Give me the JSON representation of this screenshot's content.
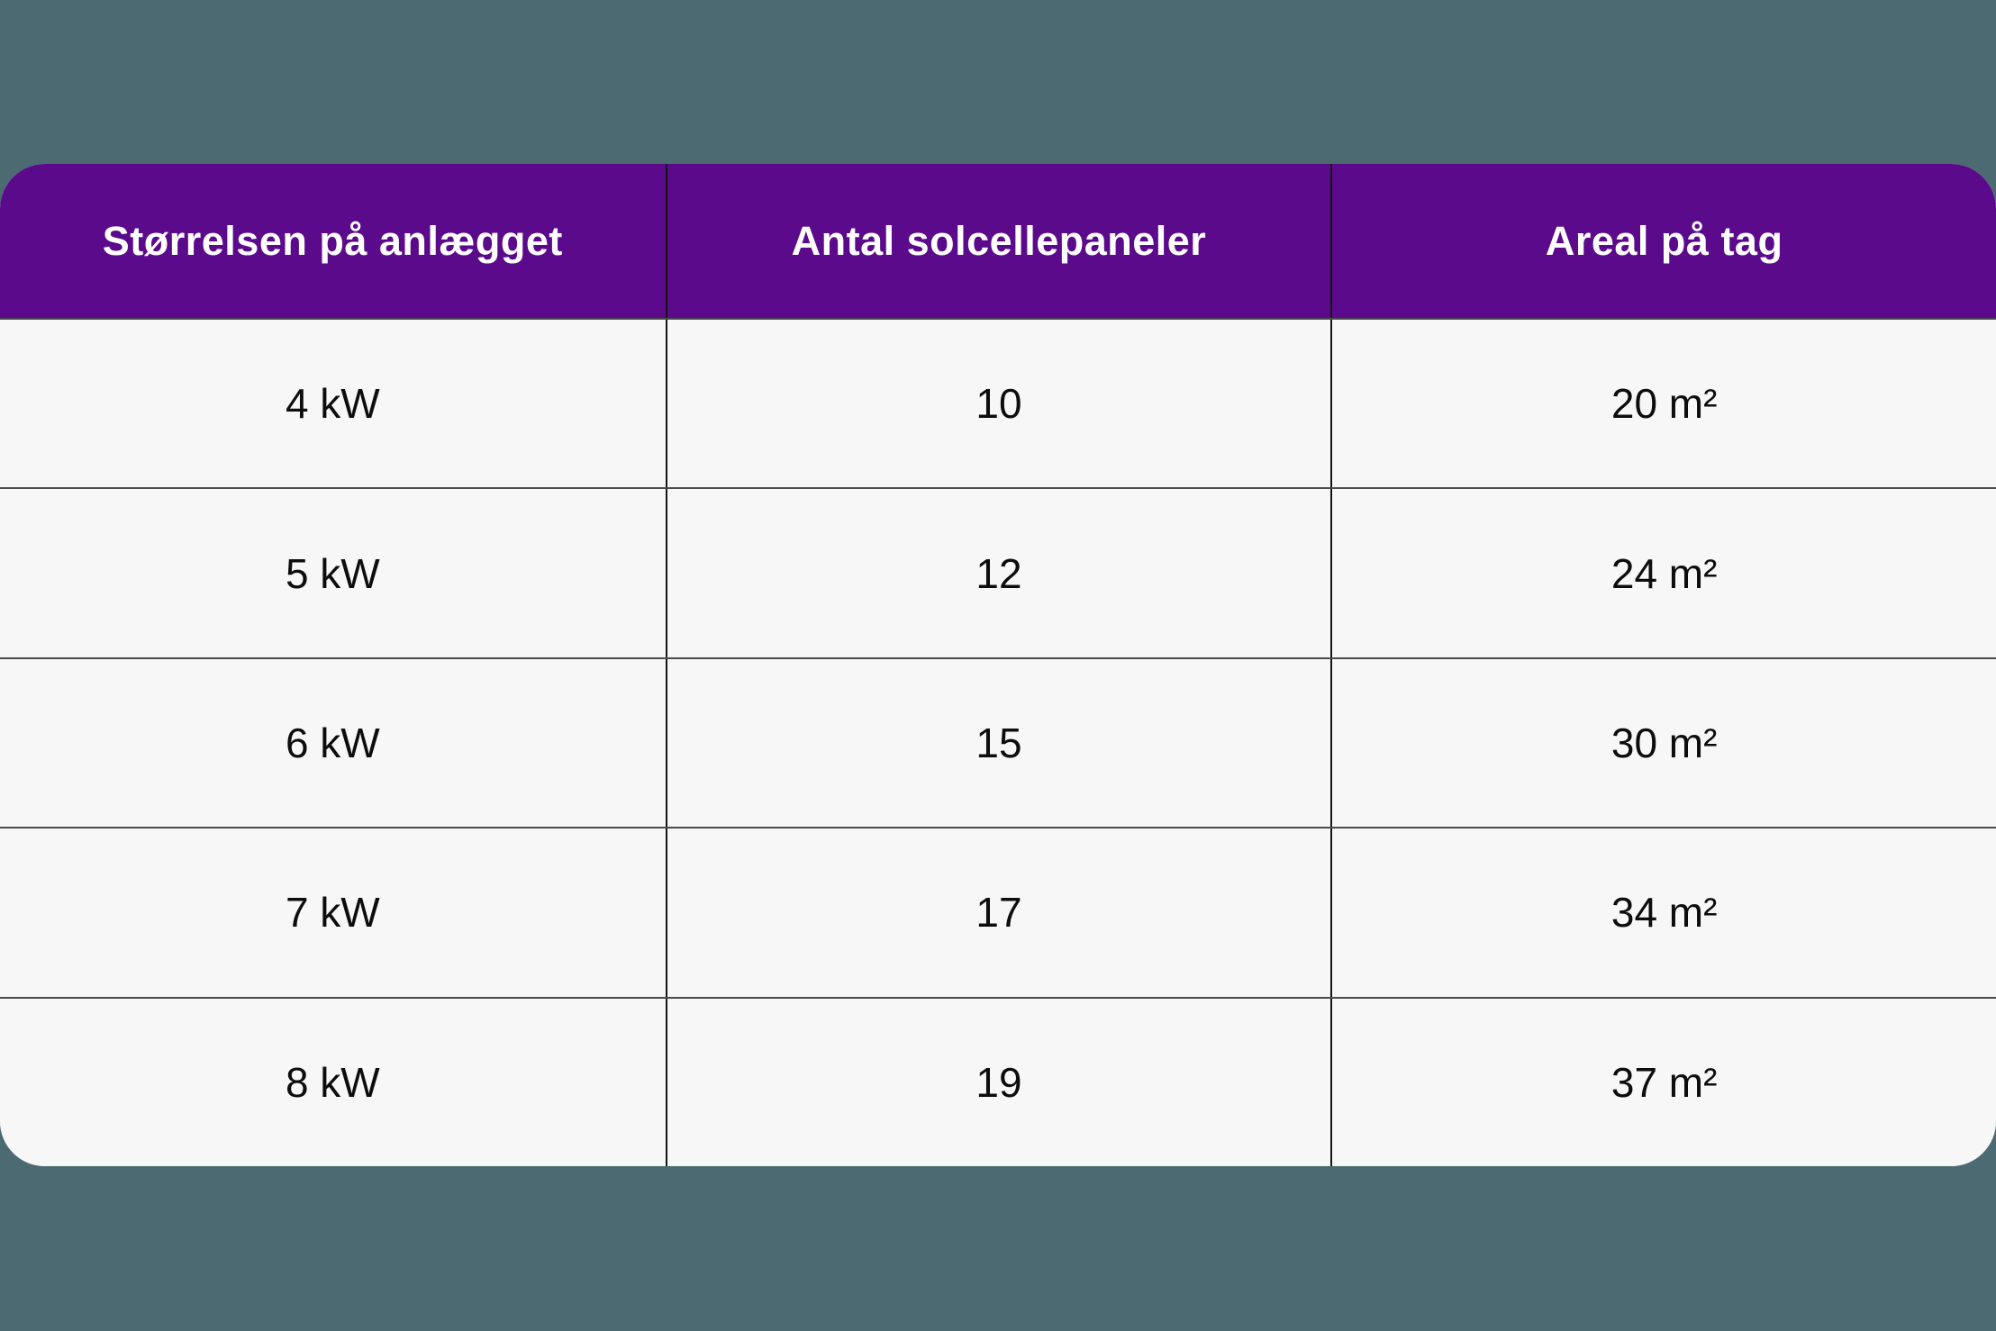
{
  "chart_data": {
    "type": "table",
    "columns": [
      "Størrelsen på anlægget",
      "Antal solcellepaneler",
      "Areal på tag"
    ],
    "rows": [
      [
        "4 kW",
        "10",
        "20 m²"
      ],
      [
        "5 kW",
        "12",
        "24 m²"
      ],
      [
        "6 kW",
        "15",
        "30 m²"
      ],
      [
        "7 kW",
        "17",
        "34 m²"
      ],
      [
        "8 kW",
        "19",
        "37 m²"
      ]
    ],
    "series": [
      {
        "name": "Størrelsen på anlægget (kW)",
        "values": [
          4,
          5,
          6,
          7,
          8
        ]
      },
      {
        "name": "Antal solcellepaneler",
        "values": [
          10,
          12,
          15,
          17,
          19
        ]
      },
      {
        "name": "Areal på tag (m²)",
        "values": [
          20,
          24,
          30,
          34,
          37
        ]
      }
    ],
    "title": "",
    "legend": "none",
    "grid": "on"
  },
  "colors": {
    "page_background": "#4C6A72",
    "header_background": "#5C0A8C",
    "header_text": "#FFFFFF",
    "row_background": "#F7F7F7",
    "cell_text": "#0D0D0D",
    "vertical_divider": "#141414",
    "horizontal_divider": "#4A4A4A"
  }
}
